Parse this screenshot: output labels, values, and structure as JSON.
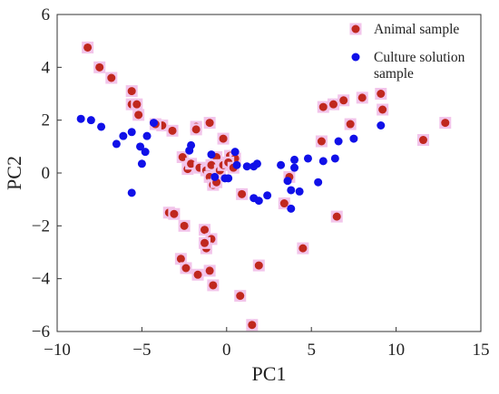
{
  "chart_data": {
    "type": "scatter",
    "xlabel": "PC1",
    "ylabel": "PC2",
    "xlim": [
      -10,
      15
    ],
    "ylim": [
      -6,
      6
    ],
    "xticks": [
      -10,
      -5,
      0,
      5,
      10,
      15
    ],
    "yticks": [
      -6,
      -4,
      -2,
      0,
      2,
      4,
      6
    ],
    "grid": false,
    "legend_position": "top-right",
    "series": [
      {
        "name": "Animal sample",
        "color": "#c0281e",
        "halo_color": "#f2c4ea",
        "points": [
          [
            -8.2,
            4.75
          ],
          [
            -7.5,
            4.0
          ],
          [
            -6.8,
            3.6
          ],
          [
            -5.6,
            3.1
          ],
          [
            -5.6,
            2.6
          ],
          [
            -5.3,
            2.6
          ],
          [
            -5.2,
            2.2
          ],
          [
            -3.8,
            1.8
          ],
          [
            -4.2,
            1.85
          ],
          [
            -3.2,
            1.6
          ],
          [
            -1.8,
            1.75
          ],
          [
            -1.8,
            1.65
          ],
          [
            -1.0,
            1.9
          ],
          [
            -0.6,
            0.6
          ],
          [
            0.2,
            0.65
          ],
          [
            0.5,
            0.55
          ],
          [
            -2.6,
            0.6
          ],
          [
            -2.3,
            0.15
          ],
          [
            -2.1,
            0.35
          ],
          [
            -1.6,
            0.2
          ],
          [
            -1.2,
            0.1
          ],
          [
            -0.9,
            0.3
          ],
          [
            -0.4,
            0.1
          ],
          [
            -0.2,
            0.3
          ],
          [
            0.1,
            0.4
          ],
          [
            0.4,
            0.2
          ],
          [
            -1.0,
            -0.15
          ],
          [
            -0.8,
            -0.45
          ],
          [
            -0.6,
            -0.35
          ],
          [
            0.9,
            -0.8
          ],
          [
            -0.2,
            1.3
          ],
          [
            3.7,
            -0.15
          ],
          [
            3.4,
            -1.15
          ],
          [
            -3.4,
            -1.5
          ],
          [
            -3.1,
            -1.55
          ],
          [
            -2.5,
            -2.0
          ],
          [
            -1.3,
            -2.15
          ],
          [
            -0.9,
            -2.5
          ],
          [
            -1.2,
            -2.85
          ],
          [
            -1.3,
            -2.65
          ],
          [
            -2.7,
            -3.25
          ],
          [
            -2.4,
            -3.6
          ],
          [
            -1.7,
            -3.85
          ],
          [
            -1.0,
            -3.7
          ],
          [
            -0.8,
            -4.25
          ],
          [
            1.9,
            -3.5
          ],
          [
            4.5,
            -2.85
          ],
          [
            0.8,
            -4.65
          ],
          [
            1.5,
            -5.75
          ],
          [
            6.5,
            -1.65
          ],
          [
            5.6,
            1.2
          ],
          [
            5.7,
            2.5
          ],
          [
            6.3,
            2.6
          ],
          [
            6.9,
            2.75
          ],
          [
            7.3,
            1.85
          ],
          [
            8.0,
            2.85
          ],
          [
            9.1,
            3.0
          ],
          [
            9.2,
            2.4
          ],
          [
            11.6,
            1.25
          ],
          [
            12.9,
            1.9
          ]
        ]
      },
      {
        "name": "Culture solution\nsample",
        "color": "#1010e8",
        "halo_color": null,
        "points": [
          [
            -8.6,
            2.05
          ],
          [
            -8.0,
            2.0
          ],
          [
            -7.4,
            1.75
          ],
          [
            -6.5,
            1.1
          ],
          [
            -6.1,
            1.4
          ],
          [
            -5.6,
            1.55
          ],
          [
            -5.1,
            1.0
          ],
          [
            -4.8,
            0.8
          ],
          [
            -4.7,
            1.4
          ],
          [
            -4.3,
            1.9
          ],
          [
            -5.0,
            0.35
          ],
          [
            -5.6,
            -0.75
          ],
          [
            -2.2,
            0.85
          ],
          [
            -2.1,
            1.05
          ],
          [
            -0.9,
            0.7
          ],
          [
            -0.7,
            -0.15
          ],
          [
            -0.1,
            -0.2
          ],
          [
            0.1,
            -0.2
          ],
          [
            0.6,
            0.3
          ],
          [
            1.2,
            0.25
          ],
          [
            1.6,
            0.25
          ],
          [
            1.8,
            0.35
          ],
          [
            0.5,
            0.8
          ],
          [
            1.6,
            -0.95
          ],
          [
            1.9,
            -1.05
          ],
          [
            2.4,
            -0.85
          ],
          [
            3.2,
            0.3
          ],
          [
            3.6,
            -0.3
          ],
          [
            3.8,
            -0.65
          ],
          [
            3.8,
            -1.35
          ],
          [
            4.0,
            0.2
          ],
          [
            4.0,
            0.5
          ],
          [
            4.3,
            -0.7
          ],
          [
            4.8,
            0.55
          ],
          [
            5.4,
            -0.35
          ],
          [
            5.7,
            0.45
          ],
          [
            6.4,
            0.55
          ],
          [
            6.6,
            1.2
          ],
          [
            7.5,
            1.3
          ],
          [
            9.1,
            1.8
          ]
        ]
      }
    ]
  }
}
